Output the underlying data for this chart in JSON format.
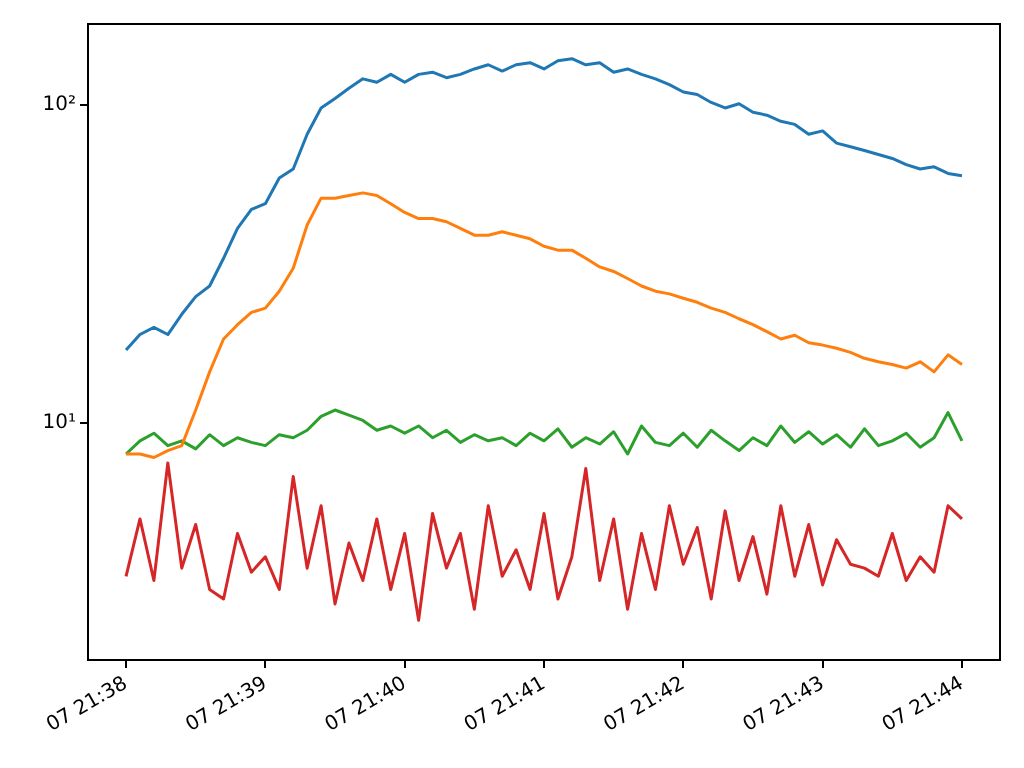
{
  "chart_data": {
    "type": "line",
    "log": "y",
    "marker": "none",
    "categories": [
      "07 21:38",
      null,
      null,
      null,
      null,
      null,
      null,
      null,
      null,
      null,
      "07 21:39",
      null,
      null,
      null,
      null,
      null,
      null,
      null,
      null,
      null,
      "07 21:40",
      null,
      null,
      null,
      null,
      null,
      null,
      null,
      null,
      null,
      "07 21:41",
      null,
      null,
      null,
      null,
      null,
      null,
      null,
      null,
      null,
      "07 21:42",
      null,
      null,
      null,
      null,
      null,
      null,
      null,
      null,
      null,
      "07 21:43",
      null,
      null,
      null,
      null,
      null,
      null,
      null,
      null,
      null,
      "07 21:44"
    ],
    "series": [
      {
        "color": "#1f77b4",
        "values": [
          17,
          19,
          20,
          19,
          22,
          25,
          27,
          33,
          41,
          47,
          49,
          59,
          63,
          81,
          98,
          105,
          113,
          121,
          118,
          125,
          118,
          125,
          127,
          122,
          125,
          130,
          134,
          128,
          134,
          136,
          130,
          138,
          140,
          134,
          136,
          127,
          130,
          125,
          121,
          116,
          110,
          108,
          102,
          98,
          101,
          95,
          93,
          89,
          87,
          81,
          83,
          76,
          74,
          72,
          70,
          68,
          65,
          63,
          64,
          61,
          60
        ]
      },
      {
        "color": "#ff7f0e",
        "values": [
          8,
          8,
          7.8,
          8.2,
          8.5,
          11,
          14.5,
          18.4,
          20.4,
          22.3,
          23,
          26,
          30.7,
          42,
          51,
          51,
          52,
          53,
          52,
          49,
          46,
          44,
          44,
          43,
          41,
          39,
          39,
          40,
          39,
          38,
          36,
          35,
          35,
          33,
          31,
          30,
          28.5,
          27,
          26,
          25.5,
          24.7,
          24,
          23,
          22.3,
          21.3,
          20.4,
          19.4,
          18.4,
          18.9,
          17.9,
          17.6,
          17.2,
          16.7,
          16,
          15.6,
          15.3,
          14.9,
          15.6,
          14.5,
          16.4,
          15.3
        ]
      },
      {
        "color": "#2ca02c",
        "values": [
          8,
          8.8,
          9.3,
          8.5,
          8.8,
          8.3,
          9.2,
          8.5,
          9,
          8.7,
          8.5,
          9.2,
          9,
          9.5,
          10.5,
          11,
          10.6,
          10.2,
          9.5,
          9.8,
          9.3,
          9.8,
          9,
          9.5,
          8.7,
          9.2,
          8.8,
          9,
          8.5,
          9.3,
          8.8,
          9.6,
          8.4,
          9,
          8.6,
          9.4,
          8,
          9.8,
          8.7,
          8.5,
          9.3,
          8.4,
          9.5,
          8.8,
          8.2,
          9,
          8.5,
          9.8,
          8.7,
          9.4,
          8.6,
          9.2,
          8.4,
          9.6,
          8.5,
          8.8,
          9.3,
          8.4,
          9,
          10.8,
          8.8
        ]
      },
      {
        "color": "#d62728",
        "values": [
          3.3,
          5,
          3.2,
          7.5,
          3.5,
          4.8,
          3,
          2.8,
          4.5,
          3.4,
          3.8,
          3,
          6.8,
          3.5,
          5.5,
          2.7,
          4.2,
          3.2,
          5,
          3,
          4.5,
          2.4,
          5.2,
          3.5,
          4.5,
          2.6,
          5.5,
          3.3,
          4,
          3,
          5.2,
          2.8,
          3.8,
          7.2,
          3.2,
          5,
          2.6,
          4.5,
          3,
          5.5,
          3.6,
          4.7,
          2.8,
          5.3,
          3.2,
          4.4,
          2.9,
          5.5,
          3.3,
          4.8,
          3.1,
          4.3,
          3.6,
          3.5,
          3.3,
          4.5,
          3.2,
          3.8,
          3.4,
          5.5,
          5
        ]
      }
    ],
    "ylim": [
      1.8,
      180
    ],
    "yticks": [
      {
        "value": 10,
        "label": "10¹"
      },
      {
        "value": 100,
        "label": "10²"
      }
    ]
  }
}
